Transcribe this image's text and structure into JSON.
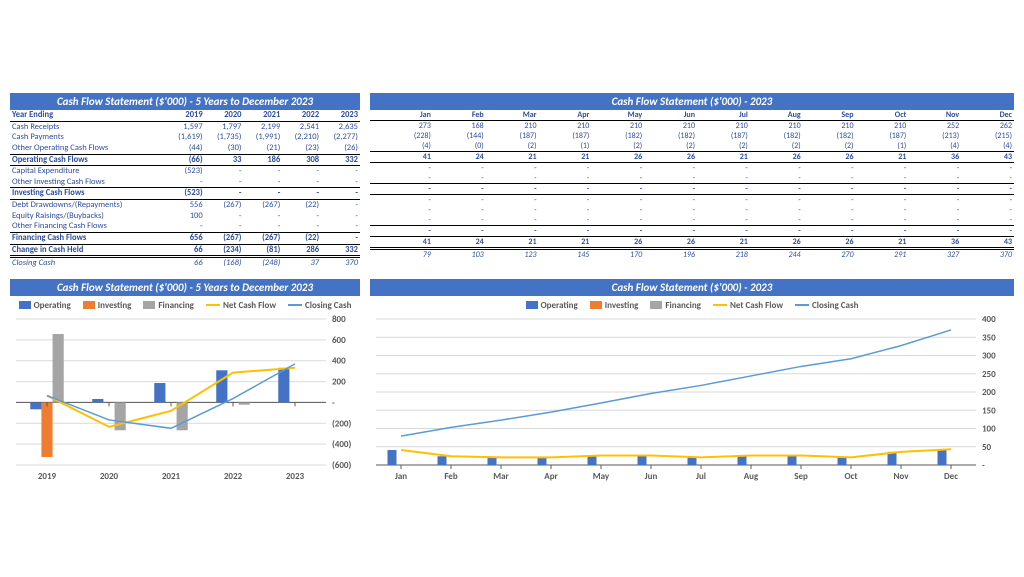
{
  "tables": {
    "left": {
      "title": "Cash Flow Statement ($'000) - 5 Years to December 2023",
      "headers": [
        "Year Ending",
        "2019",
        "2020",
        "2021",
        "2022",
        "2023"
      ],
      "rows": [
        {
          "label": "Cash Receipts",
          "cells": [
            "1,597",
            "1,797",
            "2,199",
            "2,541",
            "2,635"
          ],
          "cls": ""
        },
        {
          "label": "Cash Payments",
          "cells": [
            "(1,619)",
            "(1,735)",
            "(1,991)",
            "(2,210)",
            "(2,277)"
          ],
          "cls": ""
        },
        {
          "label": "Other Operating Cash Flows",
          "cells": [
            "(44)",
            "(30)",
            "(21)",
            "(23)",
            "(26)"
          ],
          "cls": "border-bottom"
        },
        {
          "label": "Operating Cash Flows",
          "cells": [
            "(66)",
            "33",
            "186",
            "308",
            "332"
          ],
          "cls": "bold border-bottom"
        },
        {
          "label": "Capital Expenditure",
          "cells": [
            "(523)",
            "-",
            "-",
            "-",
            "-"
          ],
          "cls": ""
        },
        {
          "label": "Other Investing Cash Flows",
          "cells": [
            "-",
            "-",
            "-",
            "-",
            "-"
          ],
          "cls": "border-bottom"
        },
        {
          "label": "Investing Cash Flows",
          "cells": [
            "(523)",
            "-",
            "-",
            "-",
            "-"
          ],
          "cls": "bold border-bottom"
        },
        {
          "label": "Debt Drawdowns/(Repayments)",
          "cells": [
            "556",
            "(267)",
            "(267)",
            "(22)",
            "-"
          ],
          "cls": ""
        },
        {
          "label": "Equity Raisings/(Buybacks)",
          "cells": [
            "100",
            "-",
            "-",
            "-",
            "-"
          ],
          "cls": ""
        },
        {
          "label": "Other Financing Cash Flows",
          "cells": [
            "-",
            "-",
            "-",
            "-",
            "-"
          ],
          "cls": "border-bottom"
        },
        {
          "label": "Financing Cash Flows",
          "cells": [
            "656",
            "(267)",
            "(267)",
            "(22)",
            "-"
          ],
          "cls": "bold border-bottom"
        },
        {
          "label": "Change in Cash Held",
          "cells": [
            "66",
            "(234)",
            "(81)",
            "286",
            "332"
          ],
          "cls": "bold change"
        },
        {
          "label": "Closing Cash",
          "cells": [
            "66",
            "(168)",
            "(248)",
            "37",
            "370"
          ],
          "cls": "closing"
        }
      ]
    },
    "right": {
      "title": "Cash Flow Statement ($'000) - 2023",
      "headers": [
        "",
        "Jan",
        "Feb",
        "Mar",
        "Apr",
        "May",
        "Jun",
        "Jul",
        "Aug",
        "Sep",
        "Oct",
        "Nov",
        "Dec"
      ],
      "rows": [
        {
          "cells": [
            "273",
            "168",
            "210",
            "210",
            "210",
            "210",
            "210",
            "210",
            "210",
            "210",
            "252",
            "262"
          ],
          "cls": ""
        },
        {
          "cells": [
            "(228)",
            "(144)",
            "(187)",
            "(187)",
            "(182)",
            "(182)",
            "(187)",
            "(182)",
            "(182)",
            "(187)",
            "(213)",
            "(215)"
          ],
          "cls": ""
        },
        {
          "cells": [
            "(4)",
            "(0)",
            "(2)",
            "(1)",
            "(2)",
            "(2)",
            "(2)",
            "(2)",
            "(2)",
            "(1)",
            "(4)",
            "(4)"
          ],
          "cls": "border-bottom"
        },
        {
          "cells": [
            "41",
            "24",
            "21",
            "21",
            "26",
            "26",
            "21",
            "26",
            "26",
            "21",
            "36",
            "43"
          ],
          "cls": "bold border-bottom"
        },
        {
          "cells": [
            "-",
            "-",
            "-",
            "-",
            "-",
            "-",
            "-",
            "-",
            "-",
            "-",
            "-",
            "-"
          ],
          "cls": ""
        },
        {
          "cells": [
            "-",
            "-",
            "-",
            "-",
            "-",
            "-",
            "-",
            "-",
            "-",
            "-",
            "-",
            "-"
          ],
          "cls": "border-bottom"
        },
        {
          "cells": [
            "-",
            "-",
            "-",
            "-",
            "-",
            "-",
            "-",
            "-",
            "-",
            "-",
            "-",
            "-"
          ],
          "cls": "bold border-bottom"
        },
        {
          "cells": [
            "-",
            "-",
            "-",
            "-",
            "-",
            "-",
            "-",
            "-",
            "-",
            "-",
            "-",
            "-"
          ],
          "cls": ""
        },
        {
          "cells": [
            "-",
            "-",
            "-",
            "-",
            "-",
            "-",
            "-",
            "-",
            "-",
            "-",
            "-",
            "-"
          ],
          "cls": ""
        },
        {
          "cells": [
            "-",
            "-",
            "-",
            "-",
            "-",
            "-",
            "-",
            "-",
            "-",
            "-",
            "-",
            "-"
          ],
          "cls": "border-bottom"
        },
        {
          "cells": [
            "-",
            "-",
            "-",
            "-",
            "-",
            "-",
            "-",
            "-",
            "-",
            "-",
            "-",
            "-"
          ],
          "cls": "bold border-bottom"
        },
        {
          "cells": [
            "41",
            "24",
            "21",
            "21",
            "26",
            "26",
            "21",
            "26",
            "26",
            "21",
            "36",
            "43"
          ],
          "cls": "bold change"
        },
        {
          "cells": [
            "79",
            "103",
            "123",
            "145",
            "170",
            "196",
            "218",
            "244",
            "270",
            "291",
            "327",
            "370"
          ],
          "cls": "closing"
        }
      ]
    }
  },
  "charts": {
    "left": {
      "title": "Cash Flow Statement ($'000) - 5 Years to December 2023",
      "legendLabels": [
        "Operating",
        "Investing",
        "Financing",
        "Net Cash Flow",
        "Closing Cash"
      ],
      "colors": {
        "operating": "#4472c4",
        "investing": "#ed7d31",
        "financing": "#a5a5a5",
        "netcash": "#ffc000",
        "closing": "#5b9bd5",
        "grid": "#d9d9d9",
        "axis": "#595959",
        "text": "#595959",
        "bg": "#ffffff"
      },
      "categories": [
        "2019",
        "2020",
        "2021",
        "2022",
        "2023"
      ],
      "yAxis": {
        "min": -600,
        "max": 800,
        "step": 200
      },
      "bars": {
        "operating": [
          -66,
          33,
          186,
          308,
          332
        ],
        "investing": [
          -523,
          0,
          0,
          0,
          0
        ],
        "financing": [
          656,
          -267,
          -267,
          -22,
          0
        ]
      },
      "lines": {
        "netcash": [
          66,
          -234,
          -81,
          286,
          332
        ],
        "closing": [
          66,
          -168,
          -248,
          37,
          370
        ]
      }
    },
    "right": {
      "title": "Cash Flow Statement ($'000) - 2023",
      "legendLabels": [
        "Operating",
        "Investing",
        "Financing",
        "Net Cash Flow",
        "Closing Cash"
      ],
      "colors": {
        "operating": "#4472c4",
        "investing": "#ed7d31",
        "financing": "#a5a5a5",
        "netcash": "#ffc000",
        "closing": "#5b9bd5",
        "grid": "#d9d9d9",
        "axis": "#595959",
        "text": "#595959",
        "bg": "#ffffff"
      },
      "categories": [
        "Jan",
        "Feb",
        "Mar",
        "Apr",
        "May",
        "Jun",
        "Jul",
        "Aug",
        "Sep",
        "Oct",
        "Nov",
        "Dec"
      ],
      "yAxis": {
        "min": 0,
        "max": 400,
        "step": 50,
        "dashLabel": "-"
      },
      "bars": {
        "operating": [
          41,
          24,
          21,
          21,
          26,
          26,
          21,
          26,
          26,
          21,
          36,
          43
        ],
        "investing": [
          0,
          0,
          0,
          0,
          0,
          0,
          0,
          0,
          0,
          0,
          0,
          0
        ],
        "financing": [
          0,
          0,
          0,
          0,
          0,
          0,
          0,
          0,
          0,
          0,
          0,
          0
        ]
      },
      "lines": {
        "netcash": [
          41,
          24,
          21,
          21,
          26,
          26,
          21,
          26,
          26,
          21,
          36,
          43
        ],
        "closing": [
          79,
          103,
          123,
          145,
          170,
          196,
          218,
          244,
          270,
          291,
          327,
          370
        ]
      }
    }
  }
}
